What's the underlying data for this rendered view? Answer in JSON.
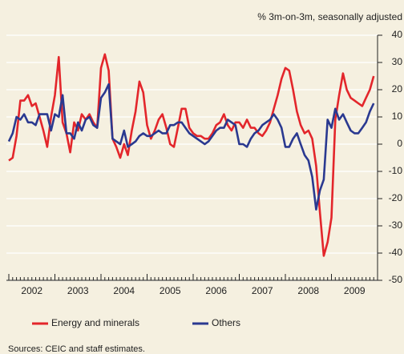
{
  "chart_data": {
    "type": "line",
    "y_axis_label": "% 3m-on-3m, seasonally adjusted",
    "source": "Sources: CEIC and staff estimates.",
    "x": [
      2002,
      2002.083,
      2002.167,
      2002.25,
      2002.333,
      2002.417,
      2002.5,
      2002.583,
      2002.667,
      2002.75,
      2002.833,
      2002.917,
      2003,
      2003.083,
      2003.167,
      2003.25,
      2003.333,
      2003.417,
      2003.5,
      2003.583,
      2003.667,
      2003.75,
      2003.833,
      2003.917,
      2004,
      2004.083,
      2004.167,
      2004.25,
      2004.333,
      2004.417,
      2004.5,
      2004.583,
      2004.667,
      2004.75,
      2004.833,
      2004.917,
      2005,
      2005.083,
      2005.167,
      2005.25,
      2005.333,
      2005.417,
      2005.5,
      2005.583,
      2005.667,
      2005.75,
      2005.833,
      2005.917,
      2006,
      2006.083,
      2006.167,
      2006.25,
      2006.333,
      2006.417,
      2006.5,
      2006.583,
      2006.667,
      2006.75,
      2006.833,
      2006.917,
      2007,
      2007.083,
      2007.167,
      2007.25,
      2007.333,
      2007.417,
      2007.5,
      2007.583,
      2007.667,
      2007.75,
      2007.833,
      2007.917,
      2008,
      2008.083,
      2008.167,
      2008.25,
      2008.333,
      2008.417,
      2008.5,
      2008.583,
      2008.667,
      2008.75,
      2008.833,
      2008.917,
      2009,
      2009.083,
      2009.167,
      2009.25,
      2009.333,
      2009.417,
      2009.5,
      2009.583,
      2009.667,
      2009.75,
      2009.833,
      2009.917
    ],
    "series": [
      {
        "name": "Energy and minerals",
        "color": "#e3262b",
        "values": [
          -6,
          -5,
          3,
          16,
          16,
          18,
          14,
          15,
          10,
          5,
          -1,
          10,
          18,
          32,
          8,
          4,
          -3,
          8,
          5,
          11,
          9,
          11,
          8,
          6,
          28,
          33,
          27,
          2,
          -1,
          -5,
          0,
          -4,
          5,
          12,
          23,
          19,
          7,
          2,
          5,
          9,
          11,
          6,
          0,
          -1,
          6,
          13,
          13,
          6,
          4,
          3,
          3,
          2,
          2,
          4,
          7,
          8,
          11,
          7,
          5,
          8,
          8,
          6,
          9,
          6,
          6,
          4,
          3,
          5,
          8,
          13,
          18,
          24,
          28,
          27,
          20,
          12,
          7,
          4,
          5,
          2,
          -8,
          -25,
          -41,
          -36,
          -27,
          9,
          18,
          26,
          20,
          17,
          16,
          15,
          14,
          17,
          20,
          25
        ]
      },
      {
        "name": "Others",
        "color": "#2a3990",
        "values": [
          1,
          4,
          10,
          9,
          11,
          8,
          8,
          7,
          11,
          11,
          11,
          5,
          11,
          10,
          18,
          4,
          4,
          2,
          8,
          5,
          9,
          10,
          7,
          6,
          17,
          19,
          22,
          2,
          1,
          0,
          5,
          -1,
          0,
          1,
          3,
          4,
          3,
          3,
          4,
          5,
          4,
          4,
          7,
          7,
          8,
          8,
          6,
          4,
          3,
          2,
          1,
          0,
          1,
          3,
          5,
          6,
          6,
          9,
          8,
          7,
          0,
          0,
          -1,
          2,
          4,
          5,
          7,
          8,
          9,
          11,
          9,
          6,
          -1,
          -1,
          2,
          4,
          0,
          -4,
          -6,
          -12,
          -24,
          -17,
          -13,
          9,
          6,
          13,
          9,
          11,
          8,
          5,
          4,
          4,
          6,
          8,
          12,
          15
        ]
      }
    ],
    "xlim": [
      2002,
      2010
    ],
    "xticks": [
      {
        "value": 2002.5,
        "label": "2002"
      },
      {
        "value": 2003.5,
        "label": "2003"
      },
      {
        "value": 2004.5,
        "label": "2004"
      },
      {
        "value": 2005.5,
        "label": "2005"
      },
      {
        "value": 2006.5,
        "label": "2006"
      },
      {
        "value": 2007.5,
        "label": "2007"
      },
      {
        "value": 2008.5,
        "label": "2008"
      },
      {
        "value": 2009.5,
        "label": "2009"
      }
    ],
    "ylim": [
      -50,
      40
    ],
    "yticks": [
      -50,
      -40,
      -30,
      -20,
      -10,
      0,
      10,
      20,
      30,
      40
    ],
    "grid": true
  }
}
